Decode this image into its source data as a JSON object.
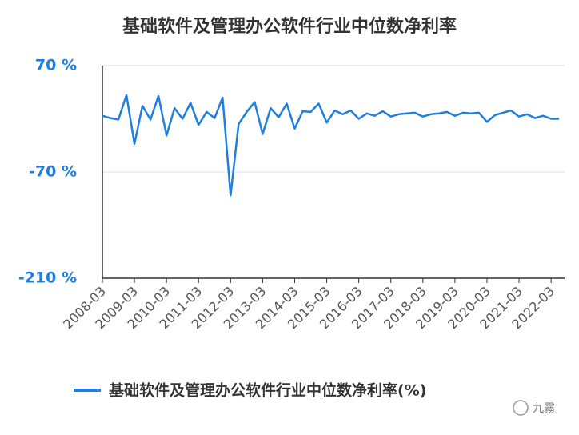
{
  "chart_data": {
    "type": "line",
    "title": "基础软件及管理办公软件行业中位数净利率",
    "categories": [
      "2008-03",
      null,
      null,
      null,
      "2009-03",
      null,
      null,
      null,
      "2010-03",
      null,
      null,
      null,
      "2011-03",
      null,
      null,
      null,
      "2012-03",
      null,
      null,
      null,
      "2013-03",
      null,
      null,
      null,
      "2014-03",
      null,
      null,
      null,
      "2015-03",
      null,
      null,
      null,
      "2016-03",
      null,
      null,
      null,
      "2017-03",
      null,
      null,
      null,
      "2018-03",
      null,
      null,
      null,
      "2019-03",
      null,
      null,
      null,
      "2020-03",
      null,
      null,
      null,
      "2021-03",
      null,
      null,
      null,
      "2022-03",
      null
    ],
    "series": [
      {
        "name": "基础软件及管理办公软件行业中位数净利率(%)",
        "color": "#1f7fe0",
        "values": [
          4,
          1,
          -1,
          31,
          -33,
          17,
          -1,
          30,
          -22,
          14,
          0,
          21,
          -8,
          9,
          1,
          28,
          -101,
          -7,
          9,
          22,
          -20,
          14,
          2,
          20,
          -13,
          10,
          9,
          20,
          -5,
          11,
          6,
          11,
          0,
          7,
          4,
          10,
          3,
          6,
          7,
          8,
          3,
          6,
          7,
          9,
          4,
          8,
          7,
          8,
          -4,
          5,
          8,
          11,
          3,
          6,
          1,
          4,
          0,
          0
        ]
      }
    ],
    "ylim": [
      -210,
      70
    ],
    "yticks": [
      {
        "value": -210,
        "label": "-210 %"
      },
      {
        "value": -70,
        "label": "-70 %"
      },
      {
        "value": 70,
        "label": "70 %"
      }
    ],
    "grid": true,
    "legend": "bottom",
    "watermark": "九霧"
  }
}
